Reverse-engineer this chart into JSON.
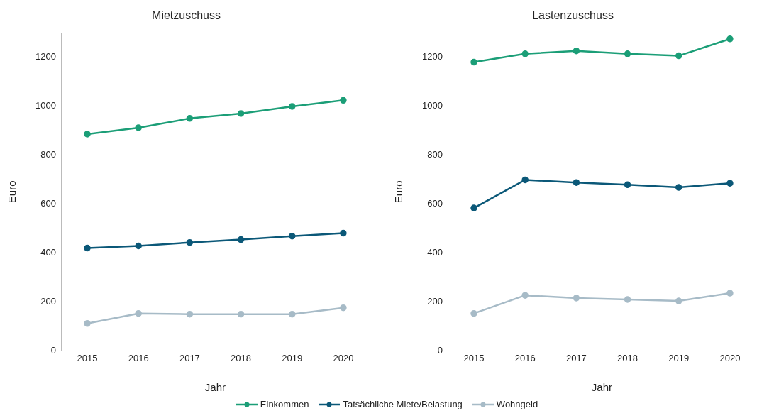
{
  "chart_data": [
    {
      "type": "line",
      "title": "Mietzuschuss",
      "xlabel": "Jahr",
      "ylabel": "Euro",
      "categories": [
        "2015",
        "2016",
        "2017",
        "2018",
        "2019",
        "2020"
      ],
      "series": [
        {
          "name": "Einkommen",
          "color": "#1b9e77",
          "values": [
            886,
            912,
            950,
            970,
            999,
            1024
          ]
        },
        {
          "name": "Tatsächliche Miete/Belastung",
          "color": "#0b5878",
          "values": [
            420,
            429,
            443,
            455,
            469,
            481
          ]
        },
        {
          "name": "Wohngeld",
          "color": "#a7bbc7",
          "values": [
            112,
            153,
            150,
            150,
            150,
            176
          ]
        }
      ],
      "ylim": [
        0,
        1300
      ],
      "yticks": [
        0,
        200,
        400,
        600,
        800,
        1000,
        1200
      ],
      "grid": "y",
      "legend": "bottom",
      "marker": "circle",
      "line_style": "solid"
    },
    {
      "type": "line",
      "title": "Lastenzuschuss",
      "xlabel": "Jahr",
      "ylabel": "Euro",
      "categories": [
        "2015",
        "2016",
        "2017",
        "2018",
        "2019",
        "2020"
      ],
      "series": [
        {
          "name": "Einkommen",
          "color": "#1b9e77",
          "values": [
            1180,
            1214,
            1226,
            1214,
            1206,
            1275
          ]
        },
        {
          "name": "Tatsächliche Miete/Belastung",
          "color": "#0b5878",
          "values": [
            584,
            699,
            688,
            679,
            668,
            685
          ]
        },
        {
          "name": "Wohngeld",
          "color": "#a7bbc7",
          "values": [
            153,
            227,
            216,
            210,
            204,
            236
          ]
        }
      ],
      "ylim": [
        0,
        1300
      ],
      "yticks": [
        0,
        200,
        400,
        600,
        800,
        1000,
        1200
      ],
      "grid": "y",
      "legend": "bottom",
      "marker": "circle",
      "line_style": "solid"
    }
  ]
}
